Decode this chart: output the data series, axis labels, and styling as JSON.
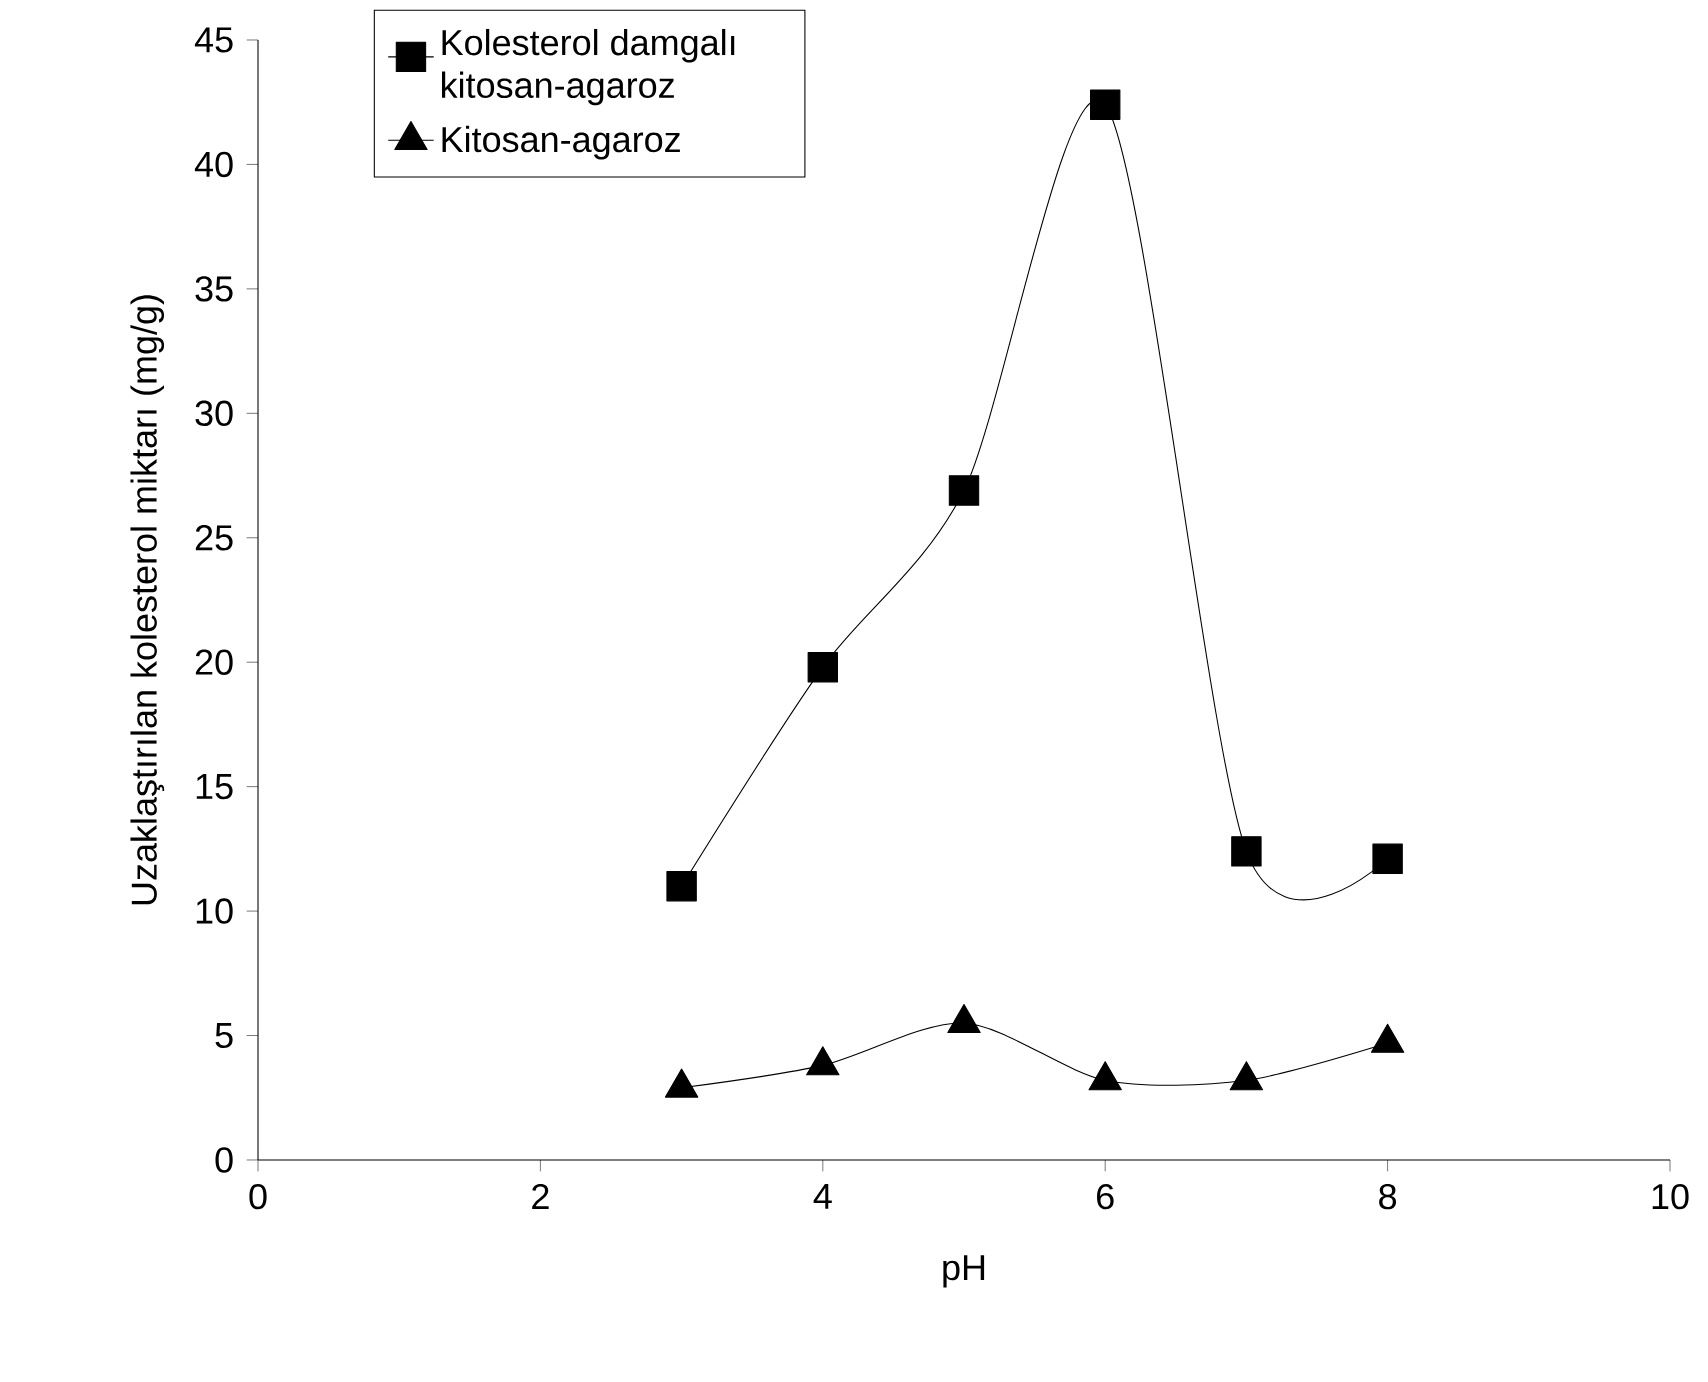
{
  "chart_data": {
    "type": "line",
    "xlabel": "pH",
    "ylabel": "Uzaklaştırılan kolesterol miktarı (mg/g)",
    "xlim": [
      0,
      10
    ],
    "xticks": [
      0,
      2,
      4,
      6,
      8,
      10
    ],
    "ylim": [
      0,
      45
    ],
    "yticks": [
      0,
      5,
      10,
      15,
      20,
      25,
      30,
      35,
      40,
      45
    ],
    "grid": false,
    "legend": "top left",
    "line_style": "solid",
    "series": [
      {
        "name": "Kolesterol damgalı kitosan-agaroz",
        "color": "#000000",
        "marker": "square",
        "x": [
          3,
          4,
          5,
          6,
          7,
          8
        ],
        "values": [
          11.0,
          19.8,
          26.9,
          42.4,
          12.4,
          12.1
        ]
      },
      {
        "name": "Kitosan-agaroz",
        "color": "#000000",
        "marker": "triangle",
        "x": [
          3,
          4,
          5,
          6,
          7,
          8
        ],
        "values": [
          2.9,
          3.8,
          5.5,
          3.2,
          3.2,
          4.7
        ]
      }
    ]
  }
}
